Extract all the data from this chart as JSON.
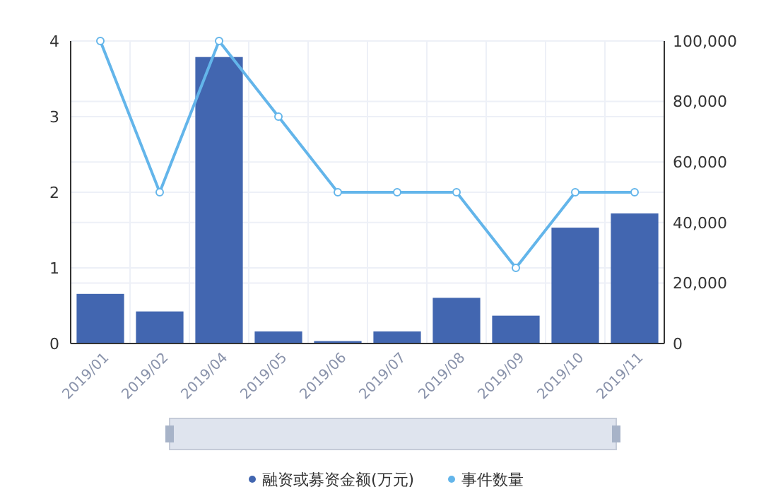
{
  "chart_data": {
    "type": "bar",
    "categories": [
      "2019/01",
      "2019/02",
      "2019/04",
      "2019/05",
      "2019/06",
      "2019/07",
      "2019/08",
      "2019/09",
      "2019/10",
      "2019/11"
    ],
    "series": [
      {
        "name": "融资或募资金额(万元)",
        "axis": "y2",
        "color": "#4266b0",
        "values": [
          16400,
          10600,
          94700,
          4000,
          800,
          4000,
          15100,
          9200,
          38300,
          43000
        ]
      },
      {
        "name": "事件数量",
        "type": "line",
        "axis": "y",
        "color": "#63b5ea",
        "values": [
          4,
          2,
          4,
          3,
          2,
          2,
          2,
          1,
          2,
          2
        ]
      }
    ],
    "ylim": [
      0,
      4
    ],
    "yticks": [
      0,
      1,
      2,
      3,
      4
    ],
    "y2lim": [
      0,
      100000
    ],
    "y2ticks": [
      {
        "value": 0,
        "label": "0"
      },
      {
        "value": 20000,
        "label": "20,000"
      },
      {
        "value": 40000,
        "label": "40,000"
      },
      {
        "value": 60000,
        "label": "60,000"
      },
      {
        "value": 80000,
        "label": "80,000"
      },
      {
        "value": 100000,
        "label": "100,000"
      }
    ],
    "grid": true,
    "legend": "bottom",
    "marker": "circle"
  }
}
